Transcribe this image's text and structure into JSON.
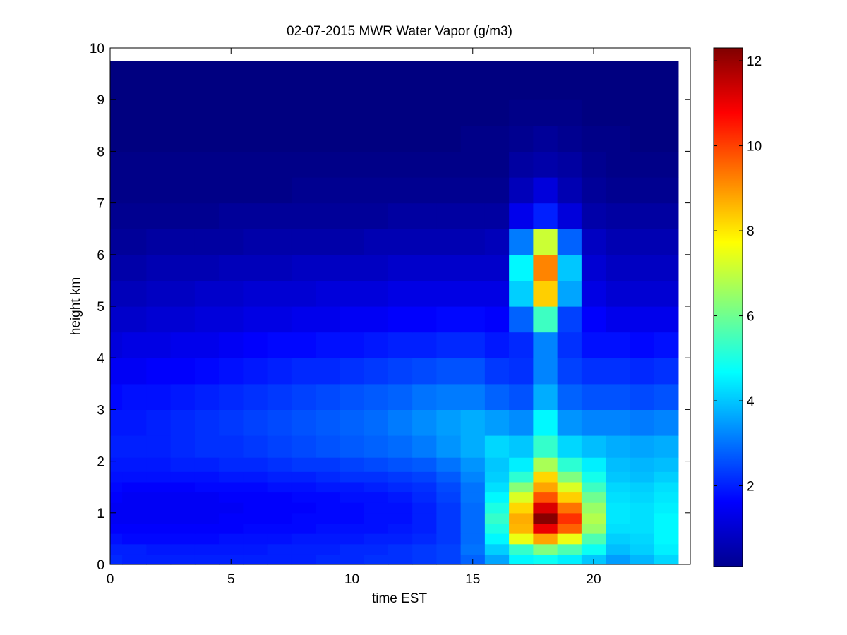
{
  "chart_data": {
    "type": "heatmap",
    "title": "02-07-2015 MWR Water Vapor (g/m3)",
    "xlabel": "time EST",
    "ylabel": "height km",
    "xlim": [
      0,
      24
    ],
    "ylim": [
      0,
      10
    ],
    "xticks": [
      0,
      5,
      10,
      15,
      20
    ],
    "yticks": [
      0,
      1,
      2,
      3,
      4,
      5,
      6,
      7,
      8,
      9,
      10
    ],
    "colorbar": {
      "colormap": "jet",
      "clim": [
        0.1,
        12.3
      ],
      "ticks": [
        2,
        4,
        6,
        8,
        10,
        12
      ]
    },
    "x": [
      0,
      1,
      2,
      3,
      4,
      5,
      6,
      7,
      8,
      9,
      10,
      11,
      12,
      13,
      14,
      15,
      16,
      17,
      18,
      19,
      20,
      21,
      22,
      23
    ],
    "y": [
      0.1,
      0.3,
      0.5,
      0.7,
      0.9,
      1.1,
      1.3,
      1.5,
      1.7,
      1.9,
      2.25,
      2.75,
      3.25,
      3.75,
      4.25,
      4.75,
      5.25,
      5.75,
      6.25,
      6.75,
      7.25,
      7.75,
      8.25,
      8.75,
      9.25,
      9.65
    ],
    "z": [
      [
        2.1,
        2.0,
        2.0,
        2.0,
        2.0,
        2.0,
        2.0,
        2.0,
        2.0,
        2.1,
        2.1,
        2.2,
        2.2,
        2.3,
        2.4,
        2.8,
        3.6,
        4.6,
        4.8,
        4.5,
        4.0,
        3.5,
        3.8,
        4.2
      ],
      [
        2.0,
        2.0,
        1.9,
        1.9,
        1.9,
        1.9,
        1.9,
        2.0,
        2.0,
        2.0,
        2.1,
        2.1,
        2.2,
        2.3,
        2.4,
        3.0,
        4.1,
        5.3,
        6.2,
        5.6,
        4.8,
        3.9,
        4.1,
        4.5
      ],
      [
        1.8,
        1.7,
        1.7,
        1.7,
        1.7,
        1.8,
        1.8,
        1.8,
        1.9,
        1.9,
        1.9,
        2.0,
        2.0,
        2.1,
        2.3,
        2.9,
        4.6,
        7.5,
        8.8,
        7.5,
        5.6,
        4.1,
        4.2,
        4.6
      ],
      [
        1.6,
        1.6,
        1.6,
        1.6,
        1.6,
        1.6,
        1.7,
        1.7,
        1.7,
        1.8,
        1.8,
        1.8,
        1.9,
        2.0,
        2.3,
        2.9,
        5.0,
        8.6,
        11.0,
        9.6,
        6.5,
        4.3,
        4.3,
        4.6
      ],
      [
        1.5,
        1.5,
        1.5,
        1.5,
        1.5,
        1.6,
        1.6,
        1.6,
        1.7,
        1.7,
        1.7,
        1.8,
        1.8,
        2.0,
        2.3,
        2.9,
        5.3,
        8.7,
        12.2,
        10.2,
        6.8,
        4.4,
        4.3,
        4.6
      ],
      [
        1.5,
        1.5,
        1.5,
        1.5,
        1.5,
        1.5,
        1.6,
        1.6,
        1.6,
        1.7,
        1.7,
        1.8,
        1.8,
        2.0,
        2.3,
        2.9,
        5.0,
        8.2,
        11.2,
        9.4,
        6.5,
        4.4,
        4.3,
        4.5
      ],
      [
        1.6,
        1.5,
        1.5,
        1.5,
        1.5,
        1.6,
        1.6,
        1.6,
        1.7,
        1.7,
        1.8,
        1.8,
        1.9,
        2.1,
        2.4,
        3.0,
        4.6,
        7.3,
        9.8,
        8.3,
        6.0,
        4.3,
        4.2,
        4.4
      ],
      [
        1.7,
        1.6,
        1.6,
        1.6,
        1.7,
        1.7,
        1.7,
        1.8,
        1.8,
        1.9,
        1.9,
        2.0,
        2.1,
        2.2,
        2.5,
        3.0,
        4.3,
        6.3,
        8.8,
        7.3,
        5.4,
        4.2,
        4.1,
        4.3
      ],
      [
        1.8,
        1.8,
        1.8,
        1.8,
        1.8,
        1.9,
        1.9,
        2.0,
        2.0,
        2.1,
        2.2,
        2.2,
        2.3,
        2.4,
        2.7,
        3.2,
        4.1,
        5.2,
        8.2,
        6.2,
        4.9,
        4.0,
        3.9,
        4.1
      ],
      [
        1.9,
        1.9,
        1.9,
        2.0,
        2.0,
        2.1,
        2.1,
        2.2,
        2.3,
        2.3,
        2.4,
        2.5,
        2.6,
        2.7,
        3.0,
        3.4,
        4.0,
        4.5,
        6.7,
        5.2,
        4.5,
        3.9,
        3.8,
        3.9
      ],
      [
        2.0,
        2.0,
        2.0,
        2.1,
        2.2,
        2.2,
        2.3,
        2.4,
        2.5,
        2.6,
        2.7,
        2.8,
        2.9,
        3.1,
        3.4,
        3.7,
        4.2,
        4.0,
        5.3,
        4.2,
        3.9,
        3.7,
        3.6,
        3.7
      ],
      [
        1.9,
        1.9,
        2.0,
        2.1,
        2.2,
        2.3,
        2.4,
        2.5,
        2.6,
        2.7,
        2.8,
        2.9,
        3.1,
        3.3,
        3.5,
        3.7,
        3.5,
        3.3,
        4.6,
        3.4,
        3.2,
        3.2,
        3.1,
        3.2
      ],
      [
        1.7,
        1.8,
        1.8,
        1.9,
        2.0,
        2.1,
        2.2,
        2.3,
        2.4,
        2.5,
        2.6,
        2.7,
        2.8,
        3.0,
        3.1,
        3.1,
        2.8,
        2.6,
        3.7,
        2.8,
        2.6,
        2.6,
        2.5,
        2.6
      ],
      [
        1.5,
        1.5,
        1.6,
        1.6,
        1.7,
        1.8,
        1.9,
        2.0,
        2.1,
        2.1,
        2.2,
        2.3,
        2.4,
        2.5,
        2.6,
        2.6,
        2.3,
        2.2,
        3.2,
        2.4,
        2.2,
        2.2,
        2.1,
        2.2
      ],
      [
        1.2,
        1.3,
        1.3,
        1.4,
        1.4,
        1.5,
        1.6,
        1.7,
        1.7,
        1.8,
        1.8,
        1.9,
        2.0,
        2.0,
        2.1,
        2.1,
        1.9,
        2.1,
        3.2,
        2.2,
        1.8,
        1.8,
        1.7,
        1.8
      ],
      [
        1.0,
        1.0,
        1.1,
        1.1,
        1.2,
        1.2,
        1.3,
        1.3,
        1.4,
        1.4,
        1.5,
        1.5,
        1.6,
        1.6,
        1.7,
        1.7,
        1.6,
        2.8,
        5.4,
        2.4,
        1.6,
        1.4,
        1.4,
        1.4
      ],
      [
        0.8,
        0.8,
        0.9,
        0.9,
        1.0,
        1.0,
        1.1,
        1.1,
        1.1,
        1.2,
        1.2,
        1.2,
        1.3,
        1.3,
        1.3,
        1.3,
        1.3,
        4.1,
        8.3,
        3.6,
        1.3,
        1.1,
        1.1,
        1.1
      ],
      [
        0.6,
        0.6,
        0.7,
        0.7,
        0.7,
        0.8,
        0.8,
        0.8,
        0.9,
        0.9,
        0.9,
        0.9,
        1.0,
        1.0,
        1.0,
        1.0,
        1.0,
        4.6,
        9.2,
        4.0,
        1.1,
        0.9,
        0.9,
        0.9
      ],
      [
        0.4,
        0.4,
        0.5,
        0.5,
        0.5,
        0.5,
        0.6,
        0.6,
        0.6,
        0.6,
        0.6,
        0.7,
        0.7,
        0.7,
        0.7,
        0.7,
        0.8,
        3.1,
        7.1,
        2.8,
        0.9,
        0.7,
        0.7,
        0.7
      ],
      [
        0.3,
        0.3,
        0.3,
        0.3,
        0.3,
        0.4,
        0.4,
        0.4,
        0.4,
        0.4,
        0.4,
        0.4,
        0.5,
        0.5,
        0.5,
        0.5,
        0.5,
        1.4,
        2.0,
        1.2,
        0.6,
        0.5,
        0.5,
        0.5
      ],
      [
        0.2,
        0.2,
        0.2,
        0.2,
        0.2,
        0.2,
        0.2,
        0.2,
        0.3,
        0.3,
        0.3,
        0.3,
        0.3,
        0.3,
        0.3,
        0.3,
        0.3,
        0.8,
        1.2,
        0.7,
        0.4,
        0.3,
        0.3,
        0.3
      ],
      [
        0.2,
        0.2,
        0.2,
        0.2,
        0.2,
        0.2,
        0.2,
        0.2,
        0.2,
        0.2,
        0.2,
        0.2,
        0.2,
        0.2,
        0.2,
        0.2,
        0.2,
        0.5,
        0.6,
        0.5,
        0.3,
        0.2,
        0.2,
        0.2
      ],
      [
        0.1,
        0.1,
        0.1,
        0.1,
        0.1,
        0.1,
        0.1,
        0.1,
        0.1,
        0.1,
        0.1,
        0.1,
        0.1,
        0.1,
        0.1,
        0.2,
        0.2,
        0.3,
        0.4,
        0.3,
        0.2,
        0.2,
        0.1,
        0.1
      ],
      [
        0.1,
        0.1,
        0.1,
        0.1,
        0.1,
        0.1,
        0.1,
        0.1,
        0.1,
        0.1,
        0.1,
        0.1,
        0.1,
        0.1,
        0.1,
        0.1,
        0.1,
        0.2,
        0.2,
        0.2,
        0.1,
        0.1,
        0.1,
        0.1
      ],
      [
        0.1,
        0.1,
        0.1,
        0.1,
        0.1,
        0.1,
        0.1,
        0.1,
        0.1,
        0.1,
        0.1,
        0.1,
        0.1,
        0.1,
        0.1,
        0.1,
        0.1,
        0.1,
        0.1,
        0.1,
        0.1,
        0.1,
        0.1,
        0.1
      ],
      [
        0.1,
        0.1,
        0.1,
        0.1,
        0.1,
        0.1,
        0.1,
        0.1,
        0.1,
        0.1,
        0.1,
        0.1,
        0.1,
        0.1,
        0.1,
        0.1,
        0.1,
        0.1,
        0.1,
        0.1,
        0.1,
        0.1,
        0.1,
        0.1
      ]
    ]
  }
}
